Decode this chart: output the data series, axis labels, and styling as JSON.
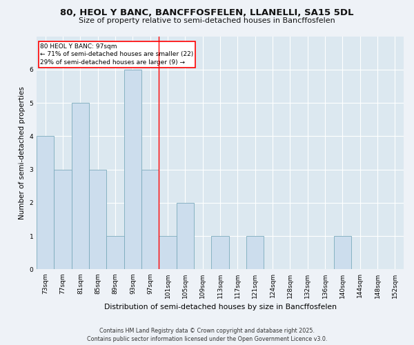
{
  "title": "80, HEOL Y BANC, BANCFFOSFELEN, LLANELLI, SA15 5DL",
  "subtitle": "Size of property relative to semi-detached houses in Bancffosfelen",
  "xlabel": "Distribution of semi-detached houses by size in Bancffosfelen",
  "ylabel": "Number of semi-detached properties",
  "categories": [
    "73sqm",
    "77sqm",
    "81sqm",
    "85sqm",
    "89sqm",
    "93sqm",
    "97sqm",
    "101sqm",
    "105sqm",
    "109sqm",
    "113sqm",
    "117sqm",
    "121sqm",
    "124sqm",
    "128sqm",
    "132sqm",
    "136sqm",
    "140sqm",
    "144sqm",
    "148sqm",
    "152sqm"
  ],
  "values": [
    4,
    3,
    5,
    3,
    1,
    6,
    3,
    1,
    2,
    0,
    1,
    0,
    1,
    0,
    0,
    0,
    0,
    1,
    0,
    0,
    0
  ],
  "bar_color": "#ccdded",
  "bar_edge_color": "#7aaabb",
  "highlight_index": 6,
  "annotation_title": "80 HEOL Y BANC: 97sqm",
  "annotation_line1": "← 71% of semi-detached houses are smaller (22)",
  "annotation_line2": "29% of semi-detached houses are larger (9) →",
  "ylim": [
    0,
    7
  ],
  "yticks": [
    0,
    1,
    2,
    3,
    4,
    5,
    6
  ],
  "footer1": "Contains HM Land Registry data © Crown copyright and database right 2025.",
  "footer2": "Contains public sector information licensed under the Open Government Licence v3.0.",
  "bg_color": "#eef2f7",
  "plot_bg_color": "#dce8f0"
}
